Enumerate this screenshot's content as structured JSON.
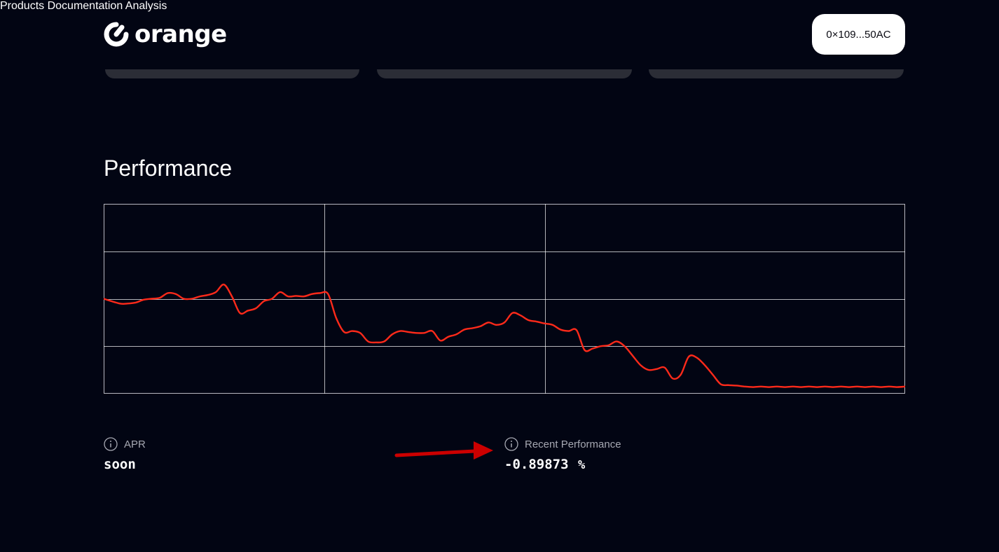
{
  "header": {
    "logo_text": "orange",
    "nav": [
      {
        "label": "Products"
      },
      {
        "label": "Documentation"
      },
      {
        "label": "Analysis"
      }
    ],
    "wallet_label": "0×109...50AC"
  },
  "performance": {
    "title": "Performance"
  },
  "chart_data": {
    "type": "line",
    "title": "",
    "xlabel": "",
    "ylabel": "",
    "ylim": [
      0,
      4
    ],
    "grid": {
      "horizontal_lines": 3,
      "vertical_lines": 2
    },
    "series": [
      {
        "color": "#ff2a1a",
        "x": [
          0,
          2,
          3,
          4,
          5,
          6,
          7,
          8,
          9,
          10,
          11,
          12,
          13,
          14,
          15,
          16,
          17,
          18,
          19,
          20,
          21,
          22,
          23,
          24,
          25,
          26,
          27,
          28,
          29,
          30,
          31,
          32,
          33,
          34,
          35,
          36,
          37,
          38,
          39,
          40,
          41,
          42,
          43,
          44,
          45,
          46,
          47,
          48,
          49,
          50,
          51,
          52,
          53,
          54,
          55,
          56,
          57,
          58,
          59,
          60,
          61,
          62,
          63,
          64,
          65,
          66,
          67,
          68,
          69,
          70,
          71,
          72,
          73,
          74,
          75,
          76,
          77,
          78,
          79,
          80,
          81,
          82,
          83,
          84,
          85,
          86,
          87,
          88,
          89,
          90,
          91,
          92,
          93,
          94,
          95,
          96,
          97,
          98,
          99,
          100
        ],
        "y": [
          2.0,
          1.9,
          1.9,
          1.92,
          1.98,
          2.0,
          2.02,
          2.12,
          2.1,
          2.0,
          2.0,
          2.05,
          2.08,
          2.14,
          2.3,
          2.05,
          1.7,
          1.75,
          1.8,
          1.95,
          2.0,
          2.14,
          2.05,
          2.06,
          2.05,
          2.1,
          2.12,
          2.1,
          1.6,
          1.3,
          1.32,
          1.28,
          1.1,
          1.08,
          1.1,
          1.25,
          1.32,
          1.3,
          1.28,
          1.28,
          1.32,
          1.12,
          1.2,
          1.25,
          1.35,
          1.38,
          1.42,
          1.5,
          1.45,
          1.5,
          1.7,
          1.65,
          1.55,
          1.52,
          1.48,
          1.45,
          1.35,
          1.32,
          1.34,
          0.92,
          0.95,
          1.0,
          1.02,
          1.1,
          1.0,
          0.8,
          0.6,
          0.5,
          0.52,
          0.55,
          0.32,
          0.4,
          0.78,
          0.76,
          0.6,
          0.4,
          0.2,
          0.18,
          0.17,
          0.15,
          0.14,
          0.15,
          0.14,
          0.15,
          0.14,
          0.15,
          0.14,
          0.15,
          0.14,
          0.15,
          0.14,
          0.15,
          0.14,
          0.15,
          0.14,
          0.15,
          0.14,
          0.15,
          0.14,
          0.15
        ]
      }
    ]
  },
  "metrics": {
    "apr": {
      "label": "APR",
      "value": "soon"
    },
    "recent": {
      "label": "Recent Performance",
      "value": "-0.89873",
      "unit": "%"
    }
  },
  "colors": {
    "background": "#020513",
    "line": "#ff2a1a",
    "grid": "#ffffff",
    "annotation_arrow": "#cc0000"
  }
}
